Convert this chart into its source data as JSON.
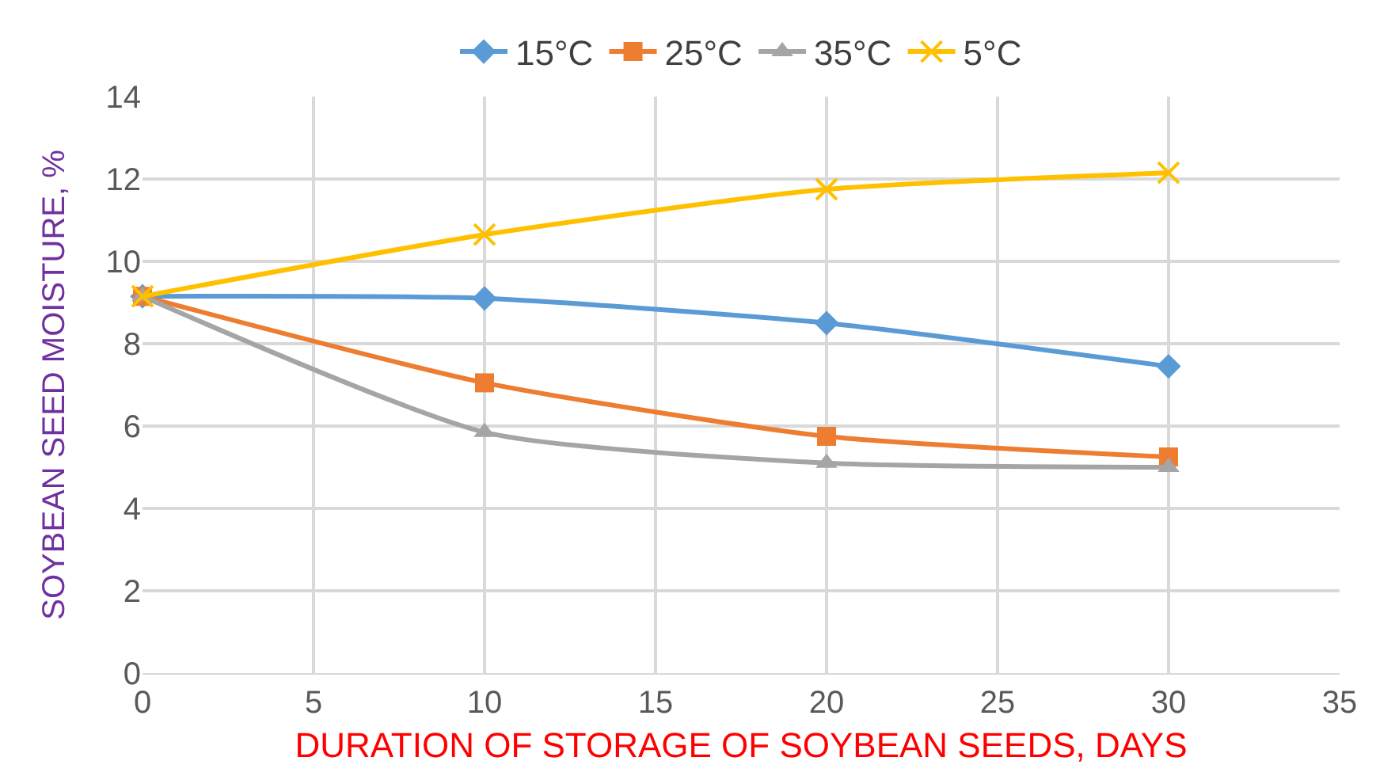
{
  "chart_data": {
    "type": "line",
    "xlabel": "DURATION OF STORAGE OF SOYBEAN SEEDS, DAYS",
    "ylabel": "SOYBEAN SEED MOISTURE, %",
    "x": [
      0,
      10,
      20,
      30
    ],
    "series": [
      {
        "name": "15°C",
        "color": "#5b9bd5",
        "marker": "diamond",
        "values": [
          9.15,
          9.1,
          8.5,
          7.45
        ]
      },
      {
        "name": "25°C",
        "color": "#ed7d31",
        "marker": "square",
        "values": [
          9.15,
          7.05,
          5.75,
          5.25
        ]
      },
      {
        "name": "35°C",
        "color": "#a5a5a5",
        "marker": "triangle",
        "values": [
          9.15,
          5.85,
          5.1,
          5.0
        ]
      },
      {
        "name": "5°C",
        "color": "#ffc000",
        "marker": "cross",
        "values": [
          9.15,
          10.65,
          11.75,
          12.15
        ]
      }
    ],
    "xlim": [
      0,
      35
    ],
    "xticks": [
      0,
      5,
      10,
      15,
      20,
      25,
      30,
      35
    ],
    "ylim": [
      0,
      14
    ],
    "yticks": [
      0,
      2,
      4,
      6,
      8,
      10,
      12,
      14
    ],
    "grid": true,
    "legend": "top",
    "line_style": "solid"
  }
}
